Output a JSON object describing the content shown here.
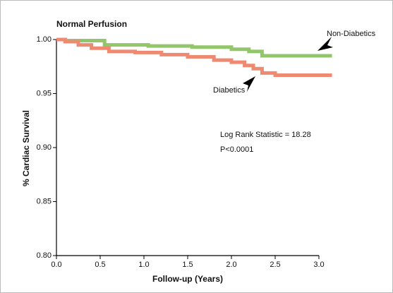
{
  "chart_data": {
    "type": "line",
    "title": "Normal Perfusion",
    "x_label": "Follow-up (Years)",
    "y_label": "% Cardiac Survival",
    "xlim": [
      0,
      3
    ],
    "ylim": [
      0.8,
      1.0
    ],
    "xticks": [
      {
        "value": 0,
        "label": "0.0"
      },
      0.5,
      {
        "value": 1,
        "label": "1.0"
      },
      1.5,
      {
        "value": 2,
        "label": "2.0"
      },
      2.5,
      {
        "value": 3,
        "label": "3.0"
      }
    ],
    "yticks": [
      {
        "value": 0.8,
        "label": "0.80"
      },
      {
        "value": 0.85,
        "label": "0.85"
      },
      {
        "value": 0.9,
        "label": "0.90"
      },
      {
        "value": 0.95,
        "label": "0.95"
      },
      {
        "value": 1.0,
        "label": "1.00"
      }
    ],
    "series": [
      {
        "name": "Non-Diabetics",
        "color": "#93c66b",
        "x": [
          0,
          0.1,
          0.1,
          0.55,
          0.55,
          1.05,
          1.05,
          1.55,
          1.55,
          2.0,
          2.0,
          2.2,
          2.2,
          2.35,
          2.35,
          3.15
        ],
        "values": [
          1.0,
          1.0,
          0.999,
          0.999,
          0.995,
          0.995,
          0.994,
          0.994,
          0.993,
          0.993,
          0.991,
          0.991,
          0.989,
          0.989,
          0.985,
          0.985
        ]
      },
      {
        "name": "Diabetics",
        "color": "#ef8a72",
        "x": [
          0,
          0.1,
          0.1,
          0.25,
          0.25,
          0.4,
          0.4,
          0.6,
          0.6,
          0.9,
          0.9,
          1.2,
          1.2,
          1.5,
          1.5,
          1.8,
          1.8,
          2.0,
          2.0,
          2.15,
          2.15,
          2.25,
          2.25,
          2.35,
          2.35,
          2.5,
          2.5,
          3.15
        ],
        "values": [
          1.0,
          1.0,
          0.998,
          0.998,
          0.995,
          0.995,
          0.992,
          0.992,
          0.989,
          0.989,
          0.988,
          0.988,
          0.986,
          0.986,
          0.984,
          0.984,
          0.981,
          0.981,
          0.979,
          0.979,
          0.976,
          0.976,
          0.973,
          0.973,
          0.969,
          0.969,
          0.967,
          0.967
        ]
      }
    ],
    "annotations": [
      "Log Rank Statistic = 18.28",
      "P<0.0001"
    ]
  }
}
